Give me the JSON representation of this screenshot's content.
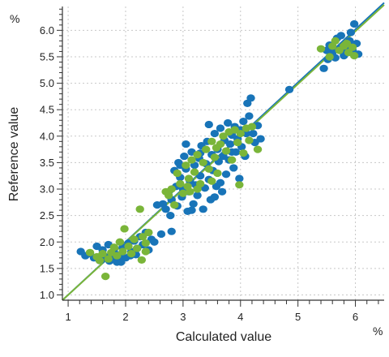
{
  "chart_data": {
    "type": "scatter",
    "xlabel": "Calculated value",
    "ylabel": "Reference value",
    "x_unit": "%",
    "y_unit": "%",
    "xlim": [
      0.9,
      6.5
    ],
    "ylim": [
      0.9,
      6.45
    ],
    "x_ticks": [
      1,
      2,
      3,
      4,
      5,
      6
    ],
    "y_ticks": [
      1.0,
      1.5,
      2.0,
      2.5,
      3.0,
      3.5,
      4.0,
      4.5,
      5.0,
      5.5,
      6.0
    ],
    "y_tick_labels": [
      "1.0",
      "1.5",
      "2.0",
      "2.5",
      "3.0",
      "3.5",
      "4.0",
      "4.5",
      "5.0",
      "5.5",
      "6.0"
    ],
    "grid": true,
    "colors": {
      "series_1": "#1874b8",
      "series_2": "#7ab539",
      "grid": "#c8c8c8",
      "axis": "#333333"
    },
    "series": [
      {
        "color": "#1874b8",
        "points": [
          [
            1.22,
            1.82
          ],
          [
            1.3,
            1.74
          ],
          [
            1.38,
            1.78
          ],
          [
            1.45,
            1.7
          ],
          [
            1.5,
            1.92
          ],
          [
            1.55,
            1.65
          ],
          [
            1.6,
            1.85
          ],
          [
            1.65,
            1.72
          ],
          [
            1.7,
            1.95
          ],
          [
            1.75,
            1.68
          ],
          [
            1.8,
            1.8
          ],
          [
            1.85,
            1.62
          ],
          [
            1.9,
            1.75
          ],
          [
            1.95,
            1.9
          ],
          [
            2.0,
            1.7
          ],
          [
            2.05,
            1.98
          ],
          [
            2.1,
            1.82
          ],
          [
            2.15,
            2.02
          ],
          [
            2.2,
            1.88
          ],
          [
            2.25,
            2.1
          ],
          [
            2.3,
            1.95
          ],
          [
            2.35,
            2.18
          ],
          [
            2.4,
            1.85
          ],
          [
            2.45,
            2.05
          ],
          [
            2.5,
            2.0
          ],
          [
            2.62,
            2.15
          ],
          [
            2.8,
            2.2
          ],
          [
            1.58,
            1.66
          ],
          [
            1.72,
            1.64
          ],
          [
            1.92,
            1.62
          ],
          [
            2.08,
            1.74
          ],
          [
            2.18,
            1.76
          ],
          [
            2.65,
            2.72
          ],
          [
            2.7,
            2.62
          ],
          [
            2.75,
            2.95
          ],
          [
            2.78,
            2.5
          ],
          [
            2.8,
            2.8
          ],
          [
            2.85,
            3.35
          ],
          [
            2.88,
            3.05
          ],
          [
            2.9,
            2.68
          ],
          [
            2.92,
            3.5
          ],
          [
            2.95,
            3.22
          ],
          [
            2.98,
            2.85
          ],
          [
            3.0,
            3.0
          ],
          [
            3.02,
            3.62
          ],
          [
            3.05,
            3.38
          ],
          [
            3.08,
            2.58
          ],
          [
            3.1,
            2.95
          ],
          [
            3.12,
            3.15
          ],
          [
            3.15,
            3.7
          ],
          [
            3.18,
            2.72
          ],
          [
            3.2,
            3.45
          ],
          [
            3.22,
            3.08
          ],
          [
            3.25,
            2.88
          ],
          [
            3.28,
            3.58
          ],
          [
            3.3,
            3.25
          ],
          [
            3.32,
            3.82
          ],
          [
            3.35,
            2.62
          ],
          [
            3.38,
            3.02
          ],
          [
            3.4,
            3.48
          ],
          [
            3.42,
            3.9
          ],
          [
            3.45,
            3.18
          ],
          [
            3.48,
            2.8
          ],
          [
            3.5,
            3.65
          ],
          [
            3.52,
            3.35
          ],
          [
            3.55,
            4.05
          ],
          [
            3.58,
            3.05
          ],
          [
            3.6,
            3.75
          ],
          [
            3.62,
            3.52
          ],
          [
            3.65,
            4.15
          ],
          [
            3.68,
            2.95
          ],
          [
            3.7,
            3.62
          ],
          [
            3.72,
            3.92
          ],
          [
            3.75,
            3.28
          ],
          [
            3.78,
            4.25
          ],
          [
            3.8,
            3.55
          ],
          [
            3.82,
            3.85
          ],
          [
            3.85,
            4.02
          ],
          [
            3.88,
            3.4
          ],
          [
            3.9,
            4.18
          ],
          [
            3.92,
            3.7
          ],
          [
            3.95,
            3.95
          ],
          [
            3.98,
            3.2
          ],
          [
            4.0,
            4.12
          ],
          [
            4.02,
            3.8
          ],
          [
            4.05,
            4.28
          ],
          [
            4.08,
            3.62
          ],
          [
            4.1,
            4.05
          ],
          [
            4.12,
            4.62
          ],
          [
            4.15,
            4.38
          ],
          [
            4.18,
            4.72
          ],
          [
            4.22,
            4.05
          ],
          [
            4.25,
            3.88
          ],
          [
            4.3,
            4.2
          ],
          [
            4.35,
            3.95
          ],
          [
            2.55,
            2.7
          ],
          [
            3.05,
            3.85
          ],
          [
            3.45,
            4.22
          ],
          [
            3.15,
            2.6
          ],
          [
            3.65,
            3.12
          ],
          [
            3.3,
            3.68
          ],
          [
            2.95,
            3.45
          ],
          [
            3.55,
            2.85
          ],
          [
            3.85,
            3.7
          ],
          [
            4.85,
            4.88
          ],
          [
            5.45,
            5.28
          ],
          [
            5.5,
            5.62
          ],
          [
            5.55,
            5.72
          ],
          [
            5.6,
            5.58
          ],
          [
            5.65,
            5.48
          ],
          [
            5.68,
            5.85
          ],
          [
            5.72,
            5.65
          ],
          [
            5.75,
            5.9
          ],
          [
            5.8,
            5.52
          ],
          [
            5.85,
            5.7
          ],
          [
            5.9,
            5.8
          ],
          [
            5.95,
            5.62
          ],
          [
            5.98,
            6.12
          ],
          [
            6.02,
            5.75
          ],
          [
            6.05,
            5.55
          ],
          [
            5.52,
            5.45
          ],
          [
            5.78,
            5.6
          ],
          [
            5.92,
            5.96
          ]
        ]
      },
      {
        "color": "#7ab539",
        "points": [
          [
            1.38,
            1.8
          ],
          [
            1.5,
            1.72
          ],
          [
            1.6,
            1.78
          ],
          [
            1.65,
            1.35
          ],
          [
            1.7,
            1.68
          ],
          [
            1.75,
            1.8
          ],
          [
            1.8,
            1.9
          ],
          [
            1.85,
            1.74
          ],
          [
            1.9,
            2.0
          ],
          [
            1.95,
            1.82
          ],
          [
            1.98,
            2.25
          ],
          [
            2.05,
            1.92
          ],
          [
            2.1,
            1.78
          ],
          [
            2.15,
            2.05
          ],
          [
            2.2,
            1.88
          ],
          [
            2.25,
            2.62
          ],
          [
            2.3,
            2.1
          ],
          [
            2.35,
            1.98
          ],
          [
            2.4,
            2.18
          ],
          [
            2.35,
            1.82
          ],
          [
            2.28,
            1.66
          ],
          [
            1.55,
            1.65
          ],
          [
            2.7,
            2.95
          ],
          [
            2.8,
            3.0
          ],
          [
            2.85,
            2.7
          ],
          [
            2.9,
            3.3
          ],
          [
            2.95,
            3.1
          ],
          [
            3.0,
            2.92
          ],
          [
            3.05,
            3.45
          ],
          [
            3.1,
            3.2
          ],
          [
            3.12,
            2.95
          ],
          [
            3.15,
            3.55
          ],
          [
            3.2,
            3.32
          ],
          [
            3.25,
            3.65
          ],
          [
            3.3,
            3.1
          ],
          [
            3.35,
            3.5
          ],
          [
            3.4,
            3.75
          ],
          [
            3.45,
            3.38
          ],
          [
            3.5,
            3.9
          ],
          [
            3.55,
            3.6
          ],
          [
            3.6,
            3.3
          ],
          [
            3.65,
            3.85
          ],
          [
            3.7,
            4.0
          ],
          [
            3.75,
            3.72
          ],
          [
            3.8,
            4.08
          ],
          [
            3.85,
            3.55
          ],
          [
            3.9,
            4.12
          ],
          [
            3.95,
            3.88
          ],
          [
            4.0,
            4.05
          ],
          [
            4.05,
            3.68
          ],
          [
            4.1,
            4.15
          ],
          [
            4.15,
            3.92
          ],
          [
            4.2,
            4.18
          ],
          [
            4.3,
            3.75
          ],
          [
            3.98,
            3.08
          ],
          [
            3.25,
            3.0
          ],
          [
            3.5,
            3.15
          ],
          [
            3.58,
            3.78
          ],
          [
            2.75,
            2.88
          ],
          [
            3.08,
            3.05
          ],
          [
            5.4,
            5.65
          ],
          [
            5.55,
            5.5
          ],
          [
            5.65,
            5.8
          ],
          [
            5.72,
            5.62
          ],
          [
            5.8,
            5.7
          ],
          [
            5.88,
            5.58
          ],
          [
            5.95,
            5.68
          ],
          [
            5.98,
            5.52
          ],
          [
            5.6,
            5.7
          ],
          [
            5.85,
            5.75
          ]
        ]
      }
    ],
    "fit_lines": [
      {
        "color": "#1874b8",
        "from": [
          0.9,
          0.9
        ],
        "to": [
          6.5,
          6.52
        ]
      },
      {
        "color": "#7ab539",
        "from": [
          0.9,
          0.9
        ],
        "to": [
          6.5,
          6.48
        ]
      }
    ]
  }
}
